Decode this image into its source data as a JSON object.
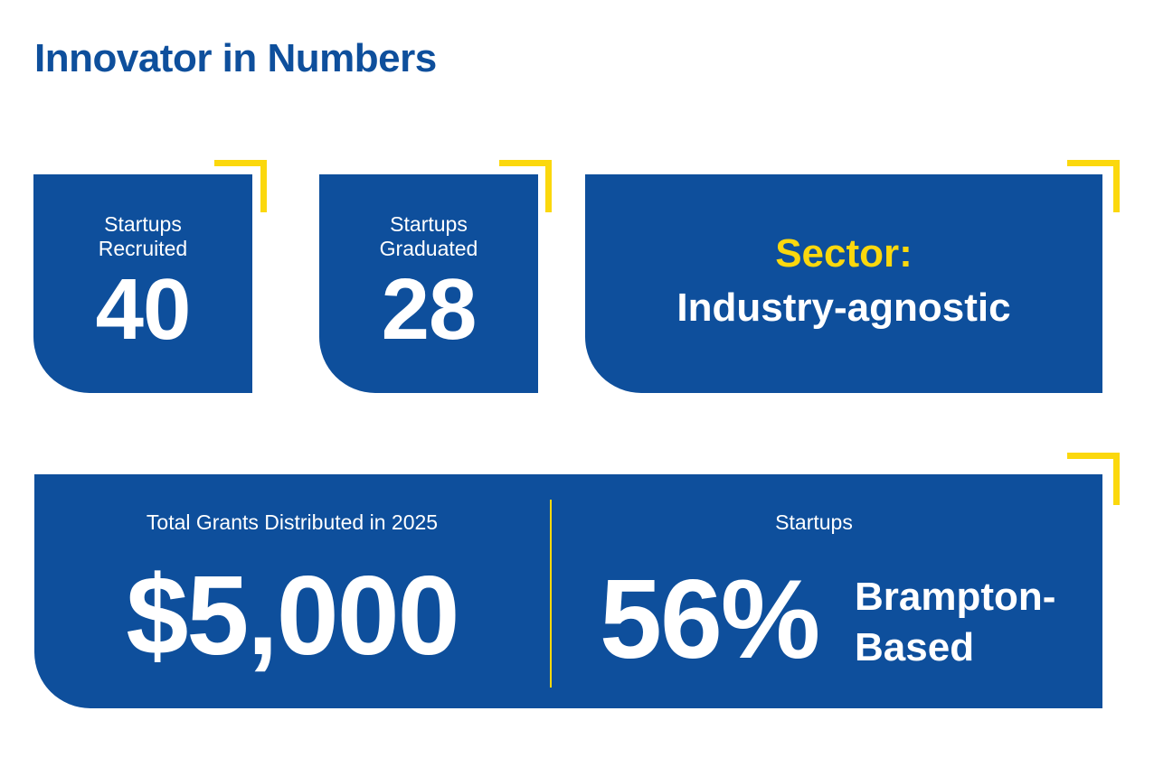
{
  "page": {
    "title": "Innovator in Numbers"
  },
  "stats": {
    "recruited": {
      "label_line1": "Startups",
      "label_line2": "Recruited",
      "value": "40"
    },
    "graduated": {
      "label_line1": "Startups",
      "label_line2": "Graduated",
      "value": "28"
    },
    "sector": {
      "label": "Sector:",
      "value": "Industry-agnostic"
    },
    "grants": {
      "label": "Total Grants Distributed in 2025",
      "value": "$5,000"
    },
    "startups_location": {
      "label": "Startups",
      "value": "56%",
      "desc_line1": "Brampton-",
      "desc_line2": "Based"
    }
  },
  "colors": {
    "primary": "#0e4f9c",
    "accent": "#fbd80d",
    "text": "#ffffff"
  }
}
